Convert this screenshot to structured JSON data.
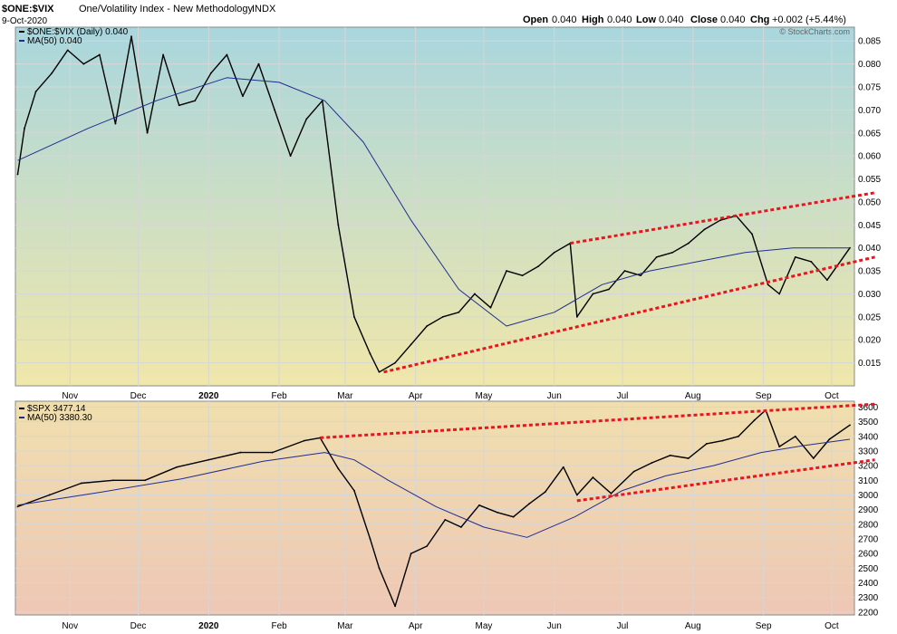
{
  "header": {
    "symbol": "$ONE:$VIX",
    "description": "One/Volatility Index - New Methodology",
    "exchange": "INDX",
    "date": "9-Oct-2020",
    "open_label": "Open",
    "open": "0.040",
    "high_label": "High",
    "high": "0.040",
    "low_label": "Low",
    "low": "0.040",
    "close_label": "Close",
    "close": "0.040",
    "chg_label": "Chg",
    "chg": "+0.002 (+5.44%)",
    "watermark": "© StockCharts.com"
  },
  "colors": {
    "price": "#000000",
    "ma": "#1f2d8f",
    "trendline": "#e8141e",
    "top_grad": [
      "#a9d6de",
      "#f0e7aa"
    ],
    "bottom_grad": [
      "#f0dfae",
      "#eec7b5"
    ]
  },
  "x_axis_labels": [
    "Nov",
    "Dec",
    "2020",
    "Feb",
    "Mar",
    "Apr",
    "May",
    "Jun",
    "Jul",
    "Aug",
    "Sep",
    "Oct"
  ],
  "chart_data": [
    {
      "type": "line",
      "panel": "top",
      "legend": [
        "$ONE:$VIX (Daily) 0.040",
        "MA(50) 0.040"
      ],
      "ylim": [
        0.01,
        0.088
      ],
      "y_ticks": [
        "0.015",
        "0.020",
        "0.025",
        "0.030",
        "0.035",
        "0.040",
        "0.045",
        "0.050",
        "0.055",
        "0.060",
        "0.065",
        "0.070",
        "0.075",
        "0.080",
        "0.085"
      ],
      "series": [
        {
          "name": "$ONE:$VIX (Daily) 0.040",
          "x": [
            "2019-10-09",
            "2019-10-12",
            "2019-10-17",
            "2019-10-24",
            "2019-10-31",
            "2019-11-07",
            "2019-11-14",
            "2019-11-21",
            "2019-11-28",
            "2019-12-05",
            "2019-12-12",
            "2019-12-19",
            "2019-12-26",
            "2020-01-02",
            "2020-01-09",
            "2020-01-16",
            "2020-01-23",
            "2020-01-30",
            "2020-02-06",
            "2020-02-13",
            "2020-02-20",
            "2020-02-27",
            "2020-03-05",
            "2020-03-12",
            "2020-03-16",
            "2020-03-23",
            "2020-03-30",
            "2020-04-06",
            "2020-04-13",
            "2020-04-20",
            "2020-04-27",
            "2020-05-04",
            "2020-05-11",
            "2020-05-18",
            "2020-05-25",
            "2020-06-01",
            "2020-06-08",
            "2020-06-11",
            "2020-06-18",
            "2020-06-25",
            "2020-07-02",
            "2020-07-09",
            "2020-07-16",
            "2020-07-23",
            "2020-07-30",
            "2020-08-06",
            "2020-08-13",
            "2020-08-20",
            "2020-08-27",
            "2020-09-03",
            "2020-09-08",
            "2020-09-15",
            "2020-09-22",
            "2020-09-29",
            "2020-10-09"
          ],
          "values": [
            0.056,
            0.066,
            0.074,
            0.078,
            0.083,
            0.08,
            0.082,
            0.067,
            0.086,
            0.065,
            0.082,
            0.071,
            0.072,
            0.078,
            0.082,
            0.073,
            0.08,
            0.07,
            0.06,
            0.068,
            0.072,
            0.045,
            0.025,
            0.017,
            0.013,
            0.015,
            0.019,
            0.023,
            0.025,
            0.026,
            0.03,
            0.027,
            0.035,
            0.034,
            0.036,
            0.039,
            0.041,
            0.025,
            0.03,
            0.031,
            0.035,
            0.034,
            0.038,
            0.039,
            0.041,
            0.044,
            0.046,
            0.047,
            0.043,
            0.032,
            0.03,
            0.038,
            0.037,
            0.033,
            0.04
          ]
        },
        {
          "name": "MA(50) 0.040",
          "x": [
            "2019-10-09",
            "2019-11-09",
            "2019-12-09",
            "2020-01-09",
            "2020-02-01",
            "2020-02-21",
            "2020-03-09",
            "2020-03-30",
            "2020-04-20",
            "2020-05-11",
            "2020-06-01",
            "2020-06-22",
            "2020-07-13",
            "2020-08-03",
            "2020-08-24",
            "2020-09-14",
            "2020-10-09"
          ],
          "values": [
            0.059,
            0.066,
            0.072,
            0.077,
            0.076,
            0.072,
            0.063,
            0.046,
            0.031,
            0.023,
            0.026,
            0.032,
            0.035,
            0.037,
            0.039,
            0.04,
            0.04
          ]
        },
        {
          "name": "",
          "style": "trendline",
          "x": [
            "2020-03-18",
            "2020-10-20"
          ],
          "values": [
            0.013,
            0.038
          ]
        },
        {
          "name": "",
          "style": "trendline",
          "x": [
            "2020-06-08",
            "2020-10-20"
          ],
          "values": [
            0.041,
            0.052
          ]
        }
      ]
    },
    {
      "type": "line",
      "panel": "bottom",
      "legend": [
        "$SPX 3477.14",
        "MA(50) 3380.30"
      ],
      "ylim": [
        2180,
        3640
      ],
      "y_ticks": [
        "2200",
        "2300",
        "2400",
        "2500",
        "2600",
        "2700",
        "2800",
        "2900",
        "3000",
        "3100",
        "3200",
        "3300",
        "3400",
        "3500",
        "3600"
      ],
      "series": [
        {
          "name": "$SPX 3477.14",
          "x": [
            "2019-10-09",
            "2019-10-23",
            "2019-11-06",
            "2019-11-20",
            "2019-12-04",
            "2019-12-18",
            "2020-01-01",
            "2020-01-15",
            "2020-01-29",
            "2020-02-12",
            "2020-02-19",
            "2020-02-27",
            "2020-03-05",
            "2020-03-12",
            "2020-03-16",
            "2020-03-23",
            "2020-03-30",
            "2020-04-06",
            "2020-04-14",
            "2020-04-21",
            "2020-04-29",
            "2020-05-07",
            "2020-05-14",
            "2020-05-21",
            "2020-05-28",
            "2020-06-05",
            "2020-06-11",
            "2020-06-18",
            "2020-06-26",
            "2020-07-06",
            "2020-07-14",
            "2020-07-22",
            "2020-07-30",
            "2020-08-07",
            "2020-08-14",
            "2020-08-21",
            "2020-08-28",
            "2020-09-02",
            "2020-09-08",
            "2020-09-15",
            "2020-09-23",
            "2020-09-30",
            "2020-10-09"
          ],
          "values": [
            2920,
            3000,
            3080,
            3100,
            3100,
            3190,
            3240,
            3290,
            3290,
            3370,
            3390,
            3180,
            3030,
            2700,
            2500,
            2240,
            2600,
            2650,
            2830,
            2780,
            2930,
            2880,
            2850,
            2940,
            3020,
            3190,
            3000,
            3120,
            3010,
            3160,
            3220,
            3270,
            3250,
            3350,
            3370,
            3400,
            3510,
            3580,
            3330,
            3400,
            3250,
            3380,
            3477
          ]
        },
        {
          "name": "MA(50) 3380.30",
          "x": [
            "2019-10-09",
            "2019-11-15",
            "2019-12-20",
            "2020-01-25",
            "2020-02-21",
            "2020-03-05",
            "2020-03-20",
            "2020-04-10",
            "2020-05-01",
            "2020-05-20",
            "2020-06-10",
            "2020-07-01",
            "2020-07-20",
            "2020-08-10",
            "2020-08-31",
            "2020-09-20",
            "2020-10-09"
          ],
          "values": [
            2930,
            3020,
            3110,
            3230,
            3290,
            3240,
            3100,
            2920,
            2780,
            2710,
            2850,
            3030,
            3130,
            3200,
            3290,
            3340,
            3380
          ]
        },
        {
          "name": "",
          "style": "trendline",
          "x": [
            "2020-02-19",
            "2020-10-20"
          ],
          "values": [
            3390,
            3620
          ]
        },
        {
          "name": "",
          "style": "trendline",
          "x": [
            "2020-06-11",
            "2020-10-20"
          ],
          "values": [
            2960,
            3240
          ]
        }
      ]
    }
  ]
}
